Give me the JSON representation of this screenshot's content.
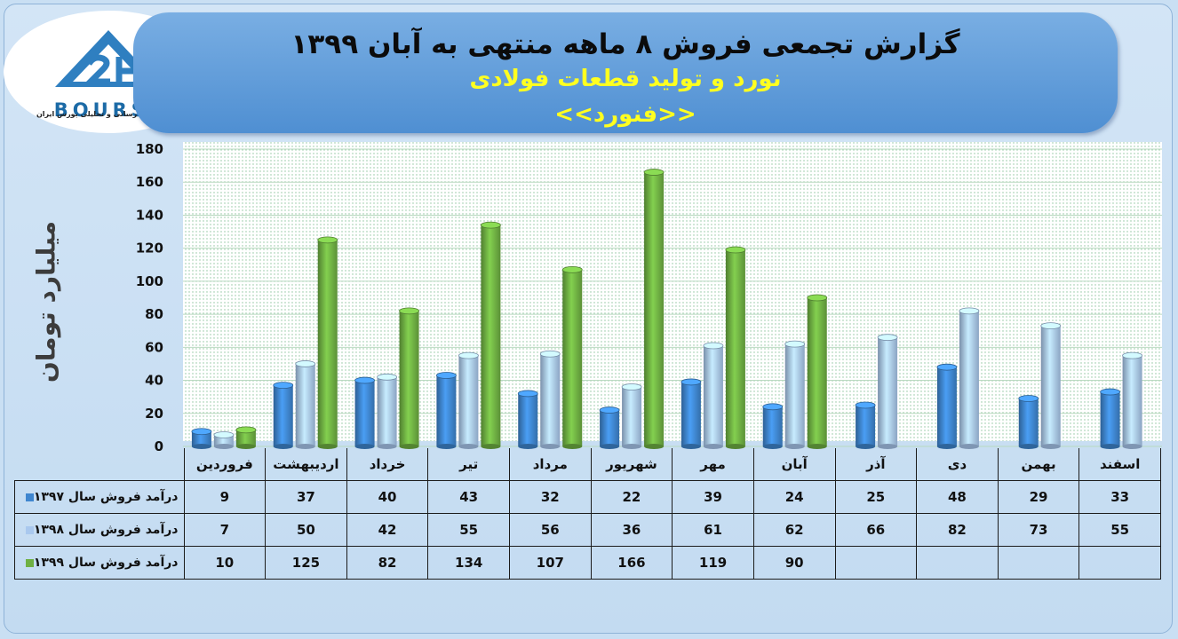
{
  "logo": {
    "text": "BOURSE",
    "subtitle": "پایگاه اطلاع رسانی و تحلیلی بورس ایران"
  },
  "chart_data": {
    "type": "bar",
    "title": "گزارش تجمعی فروش ۸ ماهه منتهی به آبان ۱۳۹۹",
    "subtitle": "نورد و تولید قطعات فولادی",
    "symbol": "<<فنورد>>",
    "ylabel": "میلیارد تومان",
    "ylim": [
      0,
      180
    ],
    "yticks": [
      0,
      20,
      40,
      60,
      80,
      100,
      120,
      140,
      160,
      180
    ],
    "grid": true,
    "categories": [
      "فروردین",
      "اردیبهشت",
      "خرداد",
      "تیر",
      "مرداد",
      "شهریور",
      "مهر",
      "آبان",
      "آذر",
      "دی",
      "بهمن",
      "اسفند"
    ],
    "series": [
      {
        "name": "درآمد فروش سال ۱۳۹۷",
        "color": "#3f86cf",
        "values": [
          9,
          37,
          40,
          43,
          32,
          22,
          39,
          24,
          25,
          48,
          29,
          33
        ]
      },
      {
        "name": "درآمد فروش سال ۱۳۹۸",
        "color": "#a9c8ee",
        "values": [
          7,
          50,
          42,
          55,
          56,
          36,
          61,
          62,
          66,
          82,
          73,
          55
        ]
      },
      {
        "name": "درآمد فروش سال ۱۳۹۹",
        "color": "#6fb043",
        "values": [
          10,
          125,
          82,
          134,
          107,
          166,
          119,
          90,
          null,
          null,
          null,
          null
        ]
      }
    ]
  }
}
